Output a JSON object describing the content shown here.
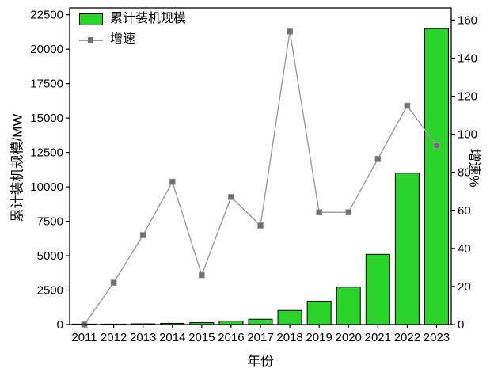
{
  "chart_data": {
    "type": "bar",
    "title": "",
    "x": [
      "2011",
      "2012",
      "2013",
      "2014",
      "2015",
      "2016",
      "2017",
      "2018",
      "2019",
      "2020",
      "2021",
      "2022",
      "2023"
    ],
    "series": [
      {
        "name": "累计装机规模",
        "type": "bar",
        "axis": "left",
        "color": "#2BD42B",
        "border_color": "#000000",
        "values": [
          15,
          30,
          55,
          90,
          140,
          250,
          390,
          1020,
          1700,
          2720,
          5100,
          11000,
          21500
        ]
      },
      {
        "name": "增速",
        "type": "line",
        "axis": "right",
        "color": "#9B9B9B",
        "marker": "square",
        "marker_color": "#707070",
        "values": [
          0,
          22,
          47,
          75,
          26,
          67,
          52,
          154,
          59,
          59,
          87,
          115,
          94
        ]
      }
    ],
    "left_axis": {
      "label": "累计装机规模/MW",
      "ticks": [
        0,
        2500,
        5000,
        7500,
        10000,
        12500,
        15000,
        17500,
        20000,
        22500
      ],
      "ylim": [
        0,
        22500
      ]
    },
    "right_axis": {
      "label": "增速%",
      "ticks": [
        0,
        20,
        40,
        60,
        80,
        100,
        120,
        140,
        160
      ],
      "ylim": [
        0,
        160
      ]
    },
    "x_axis": {
      "label": "年份"
    },
    "legend": {
      "position": "top-left",
      "entries": [
        "累计装机规模",
        "增速"
      ]
    },
    "grid": false,
    "background": "#ffffff"
  }
}
